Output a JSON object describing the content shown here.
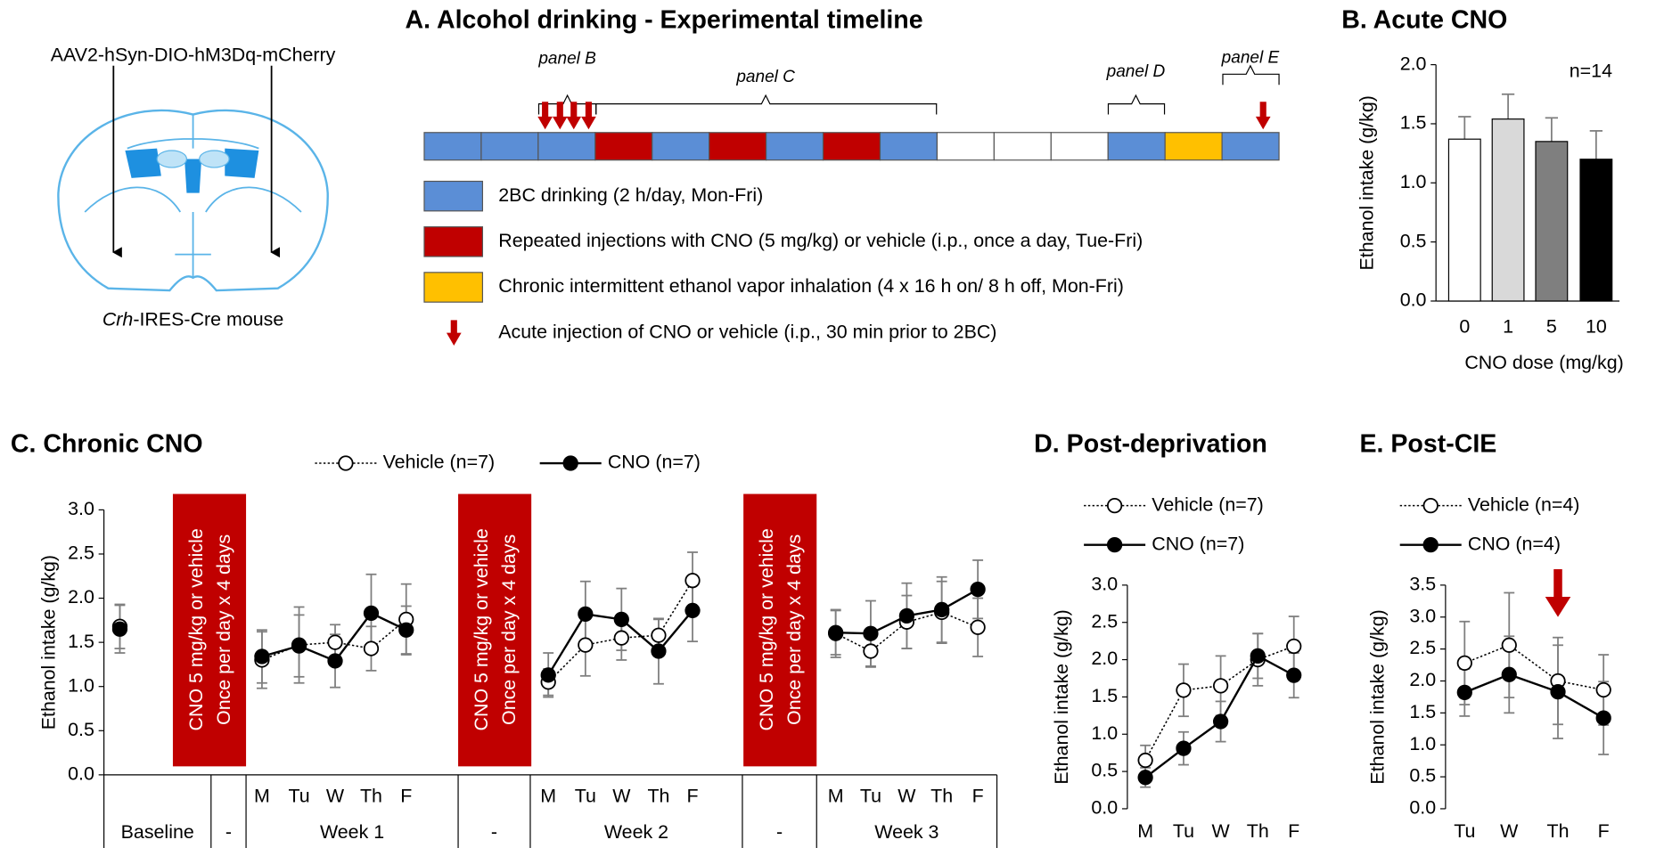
{
  "brain": {
    "vector": "AAV2-hSyn-DIO-hM3Dq-mCherry",
    "gene": "Crh",
    "strain": "-IRES-Cre mouse"
  },
  "timeline": {
    "title": "A. Alcohol drinking - Experimental timeline",
    "cells": [
      "#5b8ed6",
      "#5b8ed6",
      "#5b8ed6",
      "#c00000",
      "#5b8ed6",
      "#c00000",
      "#5b8ed6",
      "#c00000",
      "#5b8ed6",
      "#ffffff",
      "#ffffff",
      "#ffffff",
      "#5b8ed6",
      "#ffc000",
      "#5b8ed6"
    ],
    "panels": [
      "panel B",
      "panel C",
      "panel D",
      "panel E"
    ],
    "legend": [
      {
        "label": "2BC drinking (2 h/day, Mon-Fri)",
        "color": "#5b8ed6"
      },
      {
        "label": "Repeated injections with CNO (5 mg/kg) or vehicle (i.p., once a day, Tue-Fri)",
        "color": "#c00000"
      },
      {
        "label": "Chronic intermittent ethanol vapor inhalation (4 x 16 h on/ 8 h off, Mon-Fri)",
        "color": "#ffc000"
      },
      {
        "label": "Acute injection of CNO or vehicle (i.p., 30 min prior to 2BC)",
        "color": "#c00000"
      }
    ]
  },
  "chart_data": [
    {
      "type": "bar",
      "title": "B. Acute CNO",
      "annotation": "n=14",
      "x_label": "CNO dose (mg/kg)",
      "y_label": "Ethanol intake (g/kg)",
      "categories": [
        "0",
        "1",
        "5",
        "10"
      ],
      "values": [
        1.37,
        1.54,
        1.35,
        1.2
      ],
      "errors": [
        0.19,
        0.21,
        0.2,
        0.24
      ],
      "colors": [
        "#ffffff",
        "#d9d9d9",
        "#7f7f7f",
        "#000000"
      ],
      "ylim": [
        0,
        2
      ],
      "yticks": [
        {
          "value": 0,
          "label": "0.0"
        },
        0.5,
        {
          "value": 1,
          "label": "1.0"
        },
        1.5,
        {
          "value": 2,
          "label": "2.0"
        }
      ]
    },
    {
      "type": "line",
      "title": "C. Chronic CNO",
      "y_label": "Ethanol intake (g/kg)",
      "block_label": [
        "CNO 5 mg/kg or vehicle",
        "Once per day x 4 days"
      ],
      "block_color": "#c00000",
      "categories": [
        null,
        null,
        "M",
        "Tu",
        "W",
        "Th",
        "F",
        null,
        "M",
        "Tu",
        "W",
        "Th",
        "F",
        null,
        "M",
        "Tu",
        "W",
        "Th",
        "F"
      ],
      "groups": [
        "Baseline",
        "-",
        "Week 1",
        "-",
        "Week 2",
        "-",
        "Week 3"
      ],
      "series": [
        {
          "name": "Vehicle (n=7)",
          "color": "#000000",
          "line_style": "dotted",
          "marker_fill": "#ffffff",
          "values": [
            1.68,
            null,
            1.3,
            1.47,
            1.5,
            1.43,
            1.76,
            null,
            1.05,
            1.47,
            1.55,
            1.58,
            2.2,
            null,
            1.6,
            1.4,
            1.73,
            1.84,
            1.67
          ],
          "errors": [
            0.25,
            null,
            0.32,
            0.43,
            0.2,
            0.25,
            0.4,
            null,
            0.15,
            0.35,
            0.25,
            0.18,
            0.32,
            null,
            0.27,
            0.18,
            0.3,
            0.35,
            0.33
          ]
        },
        {
          "name": "CNO (n=7)",
          "color": "#000000",
          "line_style": "solid",
          "marker_fill": "#000000",
          "values": [
            1.65,
            null,
            1.34,
            1.46,
            1.29,
            1.83,
            1.64,
            null,
            1.13,
            1.82,
            1.76,
            1.4,
            1.86,
            null,
            1.61,
            1.6,
            1.8,
            1.87,
            2.1
          ],
          "errors": [
            0.27,
            null,
            0.3,
            0.35,
            0.3,
            0.44,
            0.27,
            null,
            0.25,
            0.37,
            0.35,
            0.37,
            0.35,
            null,
            0.25,
            0.37,
            0.37,
            0.37,
            0.33
          ]
        }
      ],
      "ylim": [
        0,
        3
      ],
      "yticks": [
        {
          "value": 0,
          "label": "0.0"
        },
        0.5,
        {
          "value": 1,
          "label": "1.0"
        },
        1.5,
        {
          "value": 2,
          "label": "2.0"
        },
        2.5,
        {
          "value": 3,
          "label": "3.0"
        }
      ]
    },
    {
      "type": "line",
      "title": "D. Post-deprivation",
      "y_label": "Ethanol intake (g/kg)",
      "categories": [
        "M",
        "Tu",
        "W",
        "Th",
        "F"
      ],
      "series": [
        {
          "name": "Vehicle (n=7)",
          "color": "#000000",
          "line_style": "dotted",
          "marker_fill": "#ffffff",
          "values": [
            0.65,
            1.59,
            1.65,
            2.0,
            2.18
          ],
          "errors": [
            0.2,
            0.35,
            0.4,
            0.35,
            0.4
          ]
        },
        {
          "name": "CNO (n=7)",
          "color": "#000000",
          "line_style": "solid",
          "marker_fill": "#000000",
          "values": [
            0.42,
            0.81,
            1.17,
            2.05,
            1.79
          ],
          "errors": [
            0.13,
            0.22,
            0.27,
            0.3,
            0.3
          ]
        }
      ],
      "ylim": [
        0,
        3
      ],
      "yticks": [
        {
          "value": 0,
          "label": "0.0"
        },
        0.5,
        {
          "value": 1,
          "label": "1.0"
        },
        1.5,
        {
          "value": 2,
          "label": "2.0"
        },
        2.5,
        {
          "value": 3,
          "label": "3.0"
        }
      ]
    },
    {
      "type": "line",
      "title": "E. Post-CIE",
      "y_label": "Ethanol intake (g/kg)",
      "categories": [
        "Tu",
        "W",
        "Th",
        "F"
      ],
      "series": [
        {
          "name": "Vehicle (n=4)",
          "color": "#000000",
          "line_style": "dotted",
          "marker_fill": "#ffffff",
          "values": [
            2.28,
            2.56,
            2.0,
            1.86
          ],
          "errors": [
            0.65,
            0.82,
            0.68,
            0.55
          ]
        },
        {
          "name": "CNO (n=4)",
          "color": "#000000",
          "line_style": "solid",
          "marker_fill": "#000000",
          "values": [
            1.82,
            2.1,
            1.83,
            1.42
          ],
          "errors": [
            0.37,
            0.6,
            0.73,
            0.57
          ]
        }
      ],
      "ylim": [
        0,
        3.5
      ],
      "yticks": [
        {
          "value": 0,
          "label": "0.0"
        },
        0.5,
        {
          "value": 1,
          "label": "1.0"
        },
        1.5,
        {
          "value": 2,
          "label": "2.0"
        },
        2.5,
        {
          "value": 3,
          "label": "3.0"
        },
        3.5
      ]
    }
  ]
}
